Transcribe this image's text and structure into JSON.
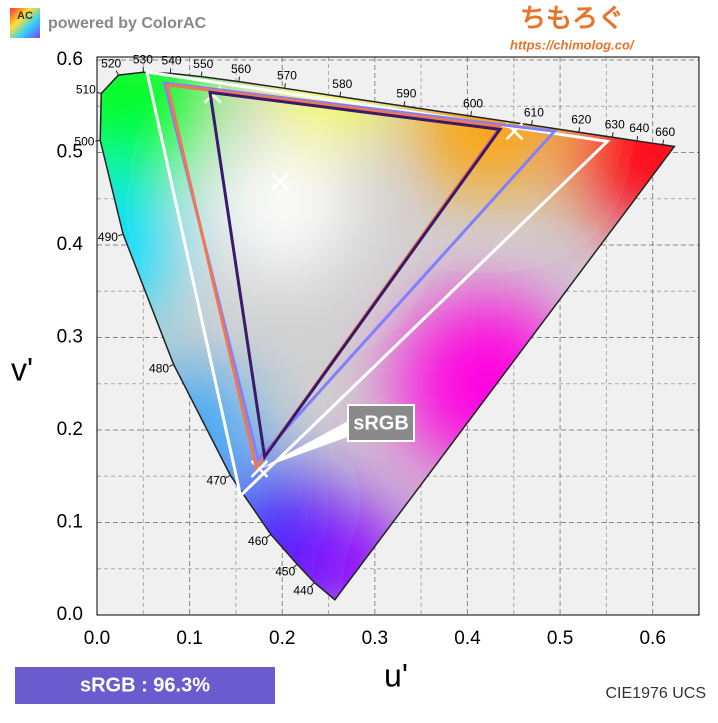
{
  "chart_data": {
    "type": "chromaticity",
    "brand": "powered by ColorAC",
    "logo": "AC",
    "site_name": "ちもろぐ",
    "site_url": "https://chimolog.co/",
    "xlabel": "u'",
    "ylabel": "v'",
    "footer": "CIE1976 UCS",
    "coverage_label": "sRGB : 96.3%",
    "xlim": [
      0,
      0.65
    ],
    "ylim": [
      0,
      0.6
    ],
    "xticks": [
      {
        "value": 0,
        "label": "0.0"
      },
      0.1,
      0.2,
      0.3,
      0.4,
      0.5,
      0.6
    ],
    "yticks": [
      {
        "value": 0,
        "label": "0.0"
      },
      0.1,
      0.2,
      0.3,
      0.4,
      0.5,
      0.6
    ],
    "xminorticks": [
      0.05,
      0.15,
      0.25,
      0.35,
      0.45,
      0.55
    ],
    "yminorticks": [
      0.05,
      0.15,
      0.25,
      0.35,
      0.45,
      0.55
    ],
    "grid": true,
    "locus": {
      "x": [
        0.2568,
        0.2347,
        0.2161,
        0.1877,
        0.144,
        0.0828,
        0.0282,
        0.0035,
        0.0046,
        0.0231,
        0.0501,
        0.0792,
        0.1127,
        0.1531,
        0.2026,
        0.2623,
        0.3315,
        0.4035,
        0.4692,
        0.5203,
        0.5565,
        0.583,
        0.6109,
        0.6234
      ],
      "values": [
        0.0165,
        0.035,
        0.0549,
        0.0871,
        0.151,
        0.2708,
        0.4117,
        0.5131,
        0.5638,
        0.5837,
        0.5868,
        0.5856,
        0.5821,
        0.5766,
        0.5694,
        0.5604,
        0.5501,
        0.5393,
        0.5296,
        0.5219,
        0.5165,
        0.5125,
        0.5084,
        0.5065
      ],
      "labels": [
        null,
        440,
        450,
        460,
        470,
        480,
        490,
        500,
        510,
        520,
        530,
        540,
        550,
        560,
        570,
        580,
        590,
        600,
        610,
        620,
        630,
        640,
        660,
        null
      ]
    },
    "series": [
      {
        "name": "sRGB",
        "color": "#ffffff",
        "marker": "x",
        "x": [
          0.4507,
          0.125,
          0.1754
        ],
        "values": [
          0.5229,
          0.5625,
          0.1579
        ]
      },
      {
        "color": "#ffffff",
        "marker": "x",
        "x": [
          0.1978
        ],
        "values": [
          0.4683
        ]
      },
      {
        "color": "#ffffff",
        "x": [
          0.054,
          0.551,
          0.155
        ],
        "values": [
          0.587,
          0.512,
          0.129
        ]
      },
      {
        "color": "#8080ff",
        "x": [
          0.073,
          0.494,
          0.174
        ],
        "values": [
          0.575,
          0.523,
          0.168
        ]
      },
      {
        "color": "#f07850",
        "x": [
          0.076,
          0.435,
          0.172
        ],
        "values": [
          0.573,
          0.528,
          0.159
        ]
      },
      {
        "color": "#3a1a6a",
        "x": [
          0.122,
          0.435,
          0.181
        ],
        "values": [
          0.565,
          0.525,
          0.171
        ]
      }
    ]
  }
}
